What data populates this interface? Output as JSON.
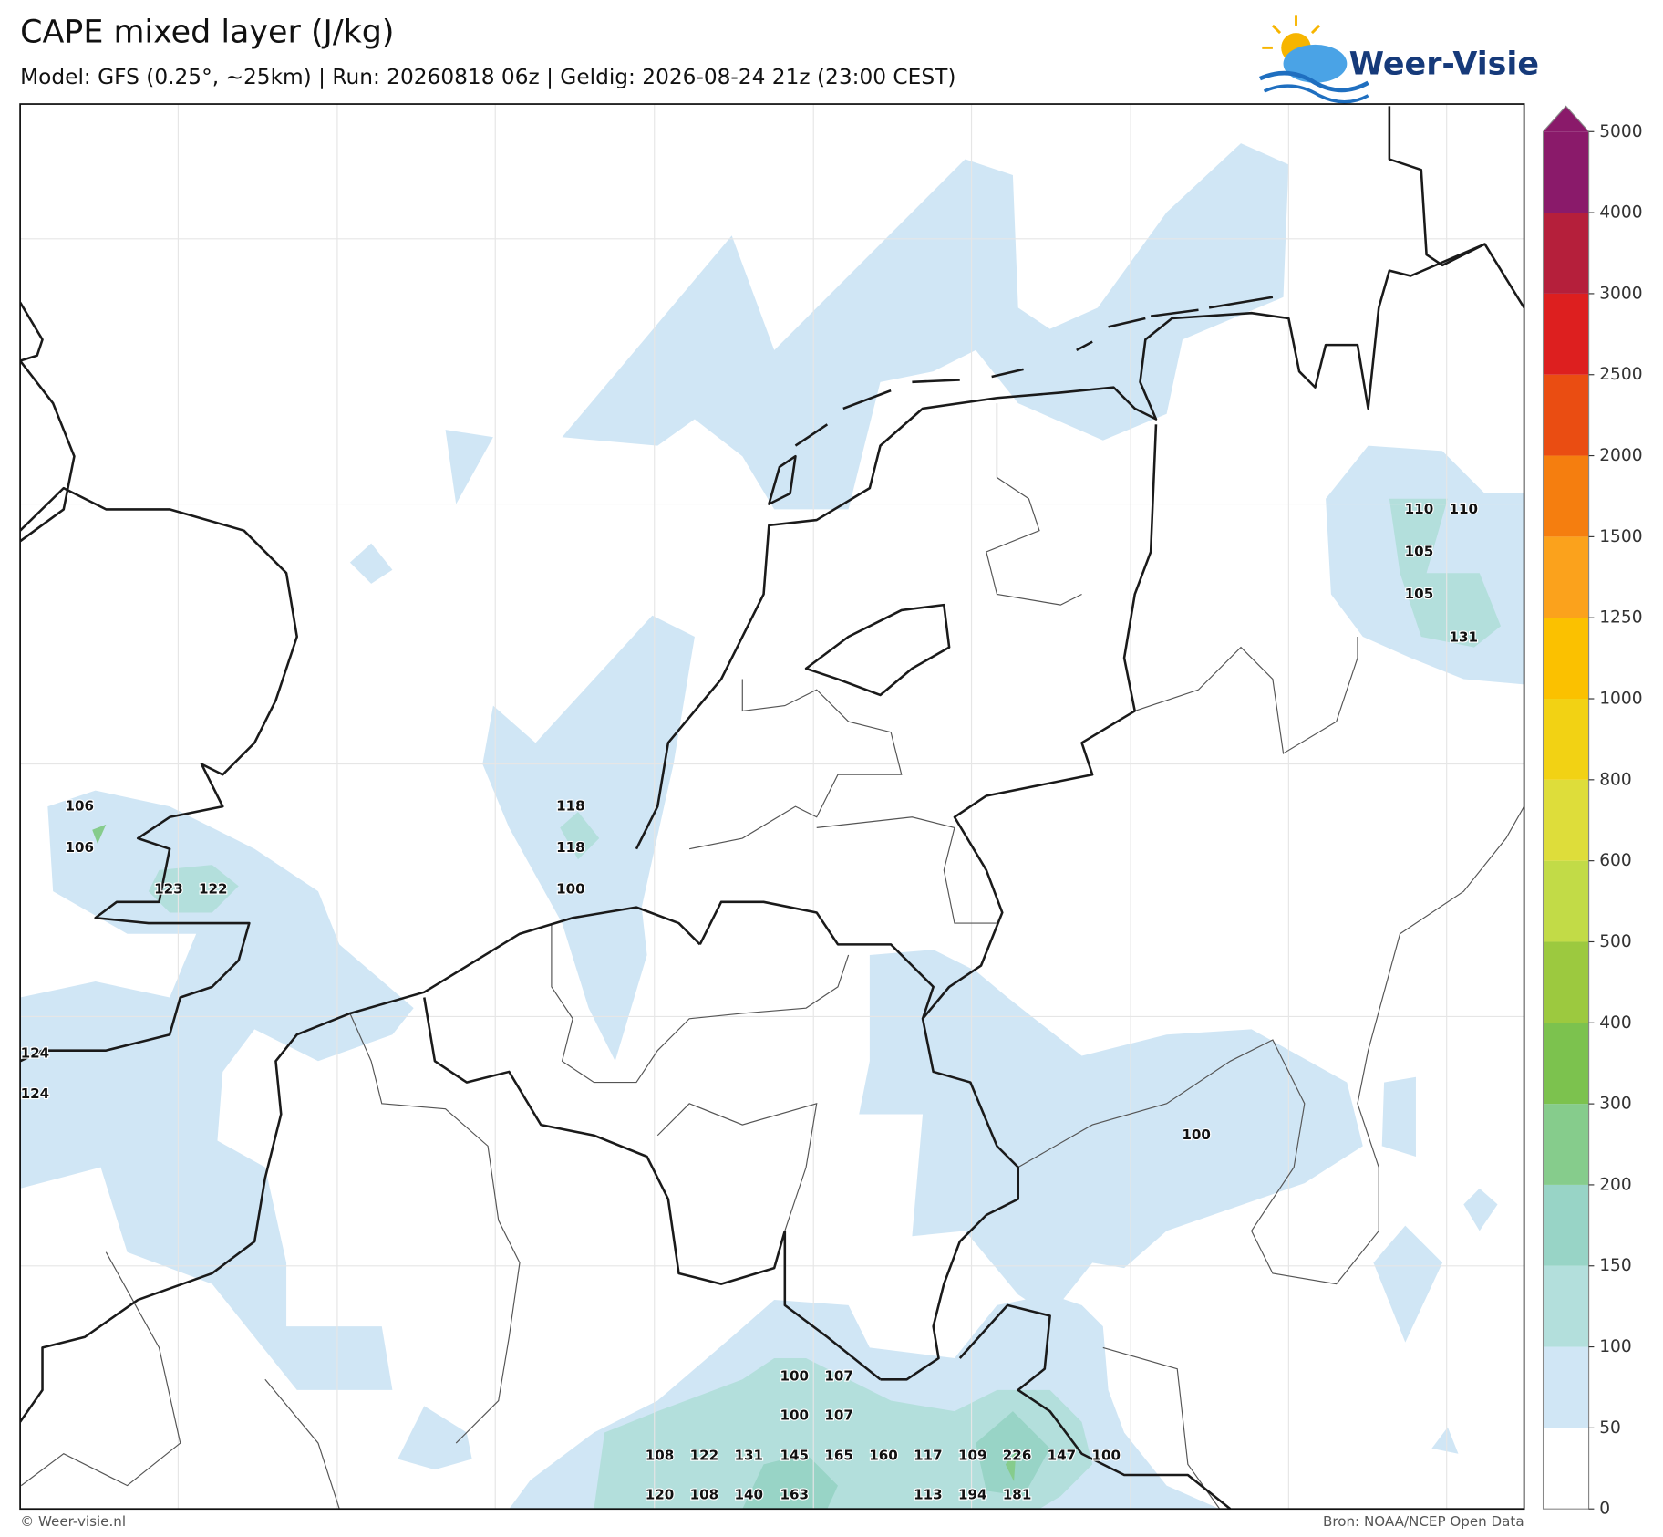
{
  "header": {
    "title": "CAPE mixed layer (J/kg)",
    "subtitle": "Model: GFS (0.25°, ~25km)  |  Run: 20260818 06z  |  Geldig: 2026-08-24 21z (23:00 CEST)",
    "logo": "Weer-Visie"
  },
  "colorbar": {
    "ticks": [
      0,
      50,
      100,
      150,
      200,
      300,
      400,
      500,
      600,
      800,
      1000,
      1250,
      1500,
      2000,
      2500,
      3000,
      4000,
      5000
    ],
    "colors": [
      "#ffffff",
      "#d0e6f5",
      "#b3dfdc",
      "#98d4c6",
      "#86cc8c",
      "#7cc24e",
      "#9cc93f",
      "#c2db47",
      "#dedd3a",
      "#f2d214",
      "#fbc100",
      "#fba21c",
      "#f57e0f",
      "#ea4d12",
      "#dd1f1f",
      "#b51f3b",
      "#8a1a6a"
    ],
    "extend_color": "#8a1a6a"
  },
  "labels": [
    106,
    106,
    123,
    122,
    118,
    118,
    100,
    124,
    124,
    110,
    110,
    105,
    105,
    131,
    100,
    100,
    107,
    100,
    107,
    108,
    122,
    131,
    145,
    165,
    160,
    117,
    109,
    226,
    147,
    100,
    120,
    108,
    140,
    163,
    113,
    194,
    181
  ],
  "footer": {
    "left": "© Weer-visie.nl",
    "right": "Bron: NOAA/NCEP Open Data"
  }
}
